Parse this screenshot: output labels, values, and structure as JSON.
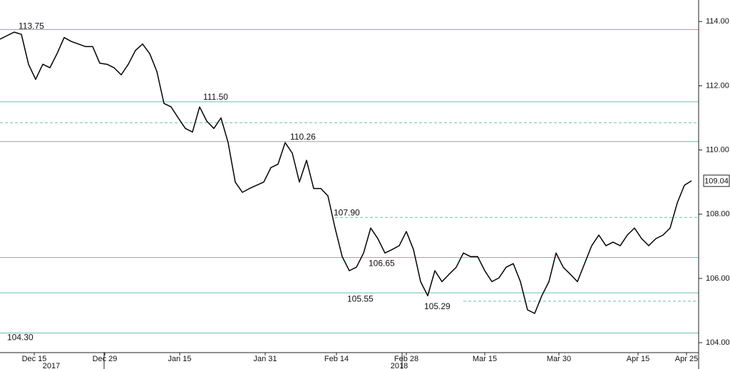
{
  "chart_data": {
    "type": "line",
    "color": "#000000",
    "level_color": "#6cbfad",
    "xlim": [
      0,
      98
    ],
    "ylim": [
      103.69,
      114.67
    ],
    "yticks": [
      {
        "value": 104,
        "label": "104.00"
      },
      {
        "value": 106,
        "label": "106.00"
      },
      {
        "value": 108,
        "label": "108.00"
      },
      {
        "value": 110,
        "label": "110.00"
      },
      {
        "value": 112,
        "label": "112.00"
      },
      {
        "value": 114,
        "label": "114.00"
      }
    ],
    "xticks": [
      {
        "value": 4.8,
        "label": "Dec 15"
      },
      {
        "value": 14.7,
        "label": "Dec 29"
      },
      {
        "value": 25.2,
        "label": "Jan 15"
      },
      {
        "value": 37.2,
        "label": "Jan 31"
      },
      {
        "value": 47.2,
        "label": "Feb 14"
      },
      {
        "value": 57.0,
        "label": "Feb 28"
      },
      {
        "value": 68.0,
        "label": "Mar 15"
      },
      {
        "value": 78.4,
        "label": "Mar 30"
      },
      {
        "value": 89.5,
        "label": "Apr 15"
      },
      {
        "value": 96.3,
        "label": "Apr 25"
      }
    ],
    "years": [
      {
        "value": 7.2,
        "label": "2017"
      },
      {
        "value": 56.0,
        "label": "2018"
      }
    ],
    "values": [
      113.45,
      113.56,
      113.67,
      113.6,
      112.67,
      112.2,
      112.67,
      112.56,
      113.0,
      113.5,
      113.38,
      113.3,
      113.22,
      113.22,
      112.7,
      112.67,
      112.56,
      112.34,
      112.67,
      113.1,
      113.3,
      113.0,
      112.45,
      111.45,
      111.34,
      111.0,
      110.67,
      110.56,
      111.34,
      110.9,
      110.67,
      111.0,
      110.23,
      109.0,
      108.68,
      108.8,
      108.9,
      109.0,
      109.45,
      109.56,
      110.23,
      109.9,
      109.0,
      109.68,
      108.8,
      108.8,
      108.57,
      107.57,
      106.68,
      106.24,
      106.35,
      106.79,
      107.57,
      107.24,
      106.79,
      106.9,
      107.02,
      107.46,
      106.9,
      105.9,
      105.46,
      106.24,
      105.9,
      106.13,
      106.35,
      106.79,
      106.68,
      106.68,
      106.24,
      105.9,
      106.02,
      106.35,
      106.46,
      105.9,
      105.02,
      104.91,
      105.46,
      105.9,
      106.79,
      106.35,
      106.13,
      105.9,
      106.46,
      107.02,
      107.35,
      107.02,
      107.13,
      107.02,
      107.35,
      107.57,
      107.24,
      107.02,
      107.24,
      107.35,
      107.57,
      108.35,
      108.9,
      109.04
    ],
    "levels": [
      {
        "value": 113.75,
        "label": "113.75",
        "style": "solid"
      },
      {
        "value": 111.5,
        "label": "111.50",
        "style": "solid"
      },
      {
        "value": 110.85,
        "style": "dashed"
      },
      {
        "value": 110.26,
        "label": "110.26",
        "style": "solid"
      },
      {
        "value": 107.9,
        "label": "107.90",
        "style": "dashed"
      },
      {
        "value": 106.65,
        "label": "106.65",
        "style": "solid"
      },
      {
        "value": 105.55,
        "label": "105.55",
        "style": "solid"
      },
      {
        "value": 105.29,
        "label": "105.29",
        "style": "dashed"
      },
      {
        "value": 104.3,
        "label": "104.30",
        "style": "solid"
      }
    ],
    "last_price": {
      "value": 109.04,
      "label": "109.04"
    }
  }
}
